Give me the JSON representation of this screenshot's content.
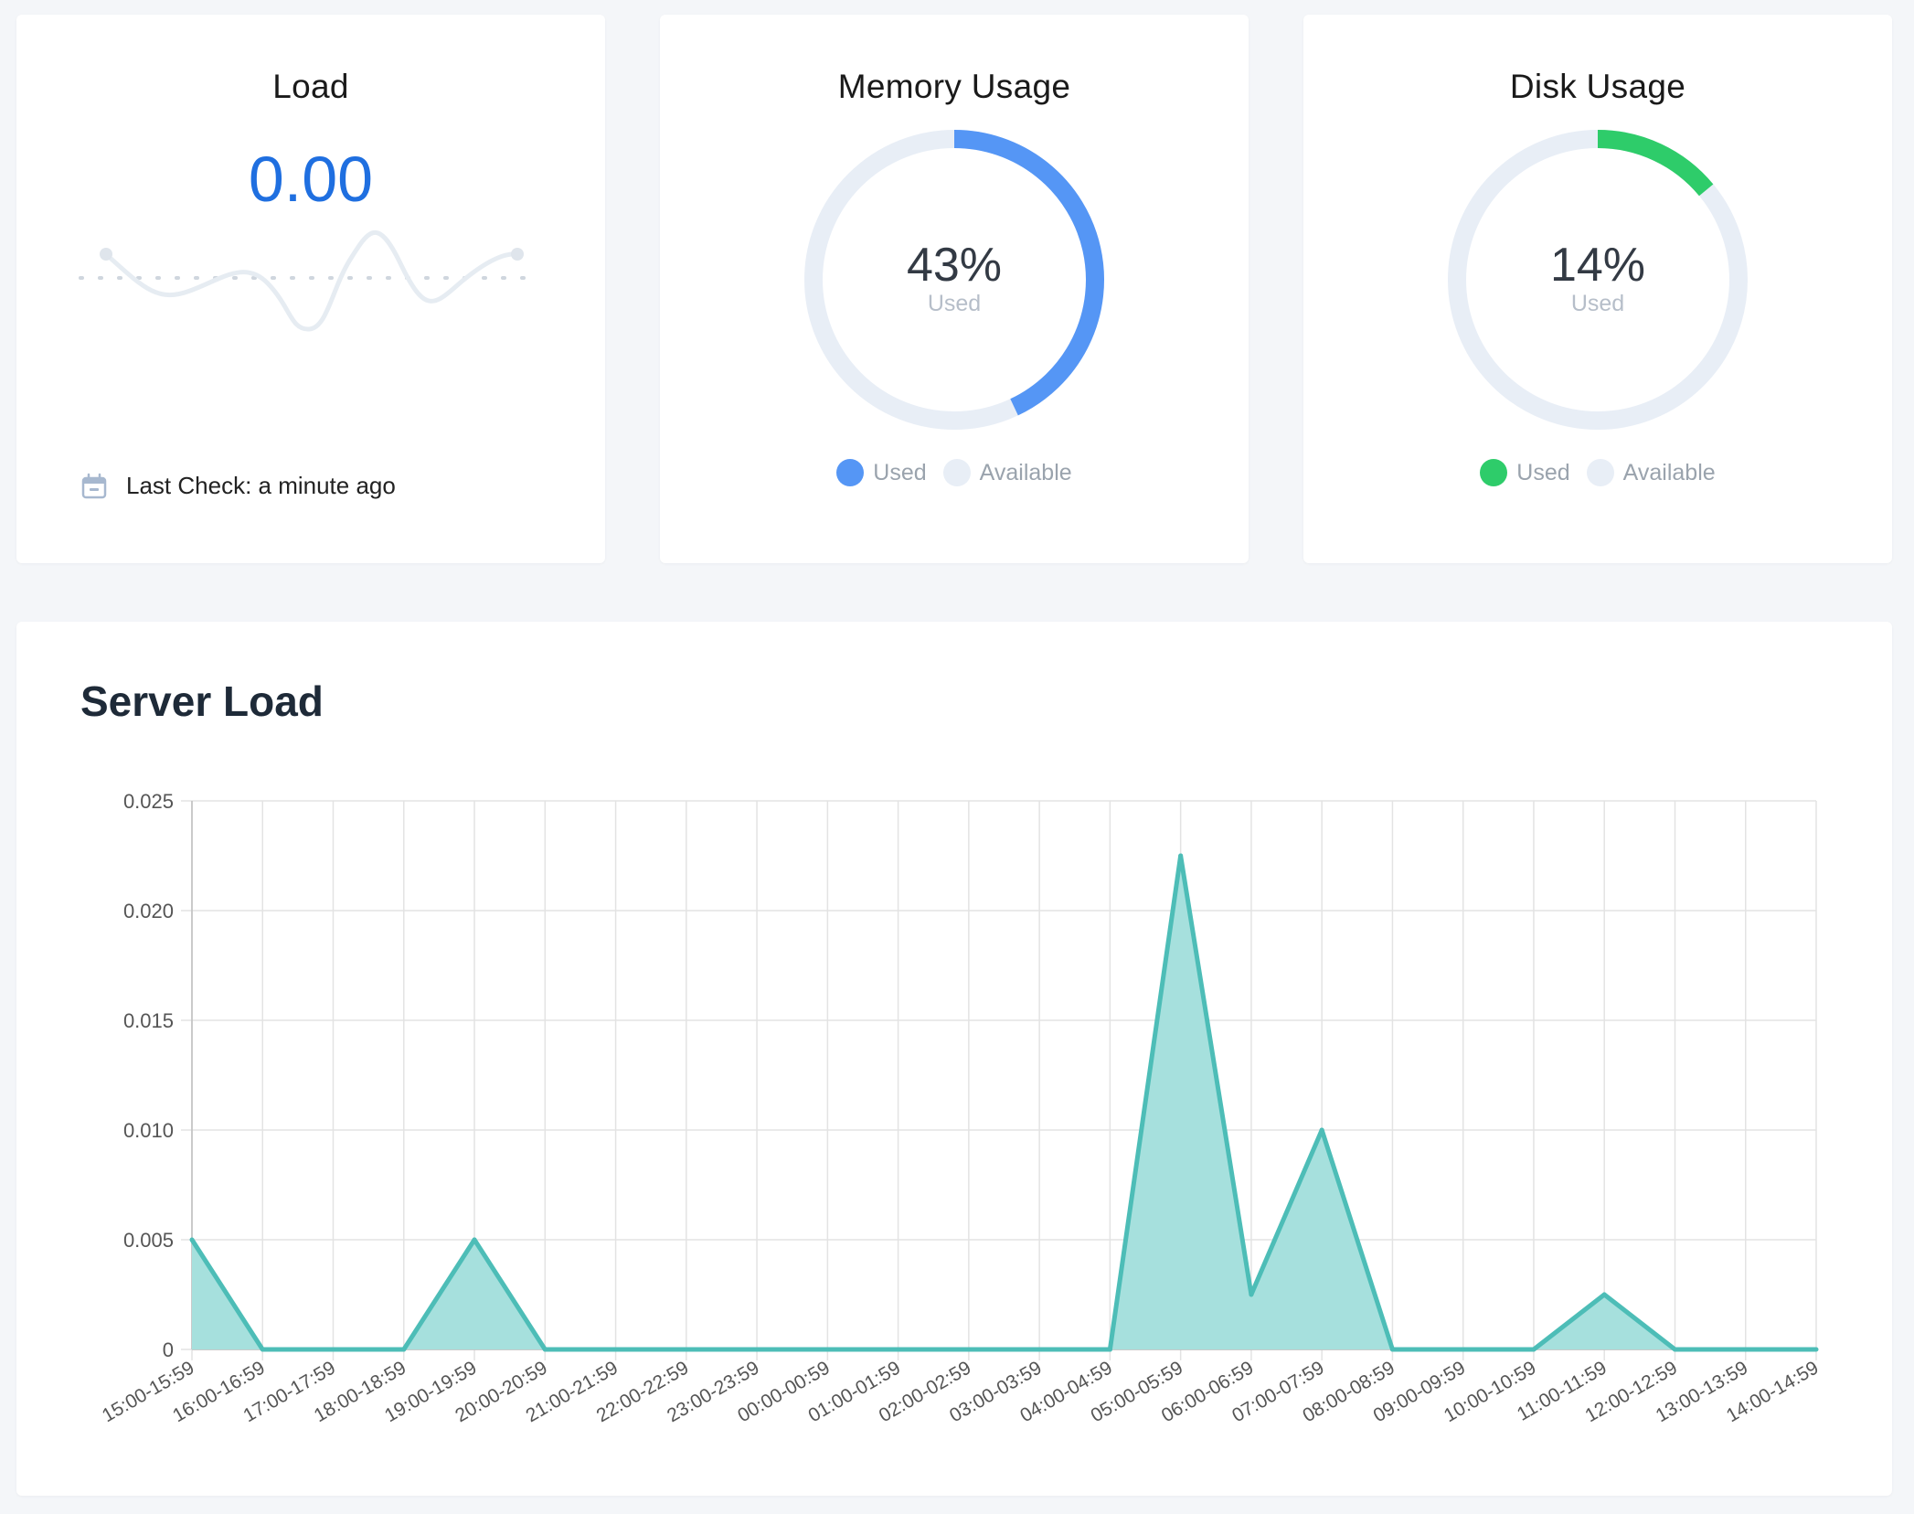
{
  "load_card": {
    "title": "Load",
    "value": "0.00",
    "last_check": "Last Check: a minute ago"
  },
  "memory_card": {
    "title": "Memory Usage",
    "percent": "43%",
    "sub_label": "Used",
    "used_fraction": 0.43,
    "color_used": "#5596f5",
    "color_available": "#e8eef6",
    "legend_used": "Used",
    "legend_available": "Available"
  },
  "disk_card": {
    "title": "Disk Usage",
    "percent": "14%",
    "sub_label": "Used",
    "used_fraction": 0.14,
    "color_used": "#2ecc6a",
    "color_available": "#e8eef6",
    "legend_used": "Used",
    "legend_available": "Available"
  },
  "server_load": {
    "title": "Server Load"
  },
  "chart_data": {
    "type": "area",
    "title": "Server Load",
    "xlabel": "",
    "ylabel": "",
    "categories": [
      "15:00-15:59",
      "16:00-16:59",
      "17:00-17:59",
      "18:00-18:59",
      "19:00-19:59",
      "20:00-20:59",
      "21:00-21:59",
      "22:00-22:59",
      "23:00-23:59",
      "00:00-00:59",
      "01:00-01:59",
      "02:00-02:59",
      "03:00-03:59",
      "04:00-04:59",
      "05:00-05:59",
      "06:00-06:59",
      "07:00-07:59",
      "08:00-08:59",
      "09:00-09:59",
      "10:00-10:59",
      "11:00-11:59",
      "12:00-12:59",
      "13:00-13:59",
      "14:00-14:59"
    ],
    "values": [
      0.005,
      0,
      0,
      0,
      0.005,
      0,
      0,
      0,
      0,
      0,
      0,
      0,
      0,
      0,
      0.0225,
      0.0025,
      0.01,
      0,
      0,
      0,
      0.0025,
      0,
      0,
      0
    ],
    "ylim": [
      0,
      0.025
    ],
    "yticks": [
      "0",
      "0.005",
      "0.010",
      "0.015",
      "0.020",
      "0.025"
    ],
    "grid": true,
    "line_color": "#4dbdb7",
    "fill_color": "#a6e0dd"
  }
}
